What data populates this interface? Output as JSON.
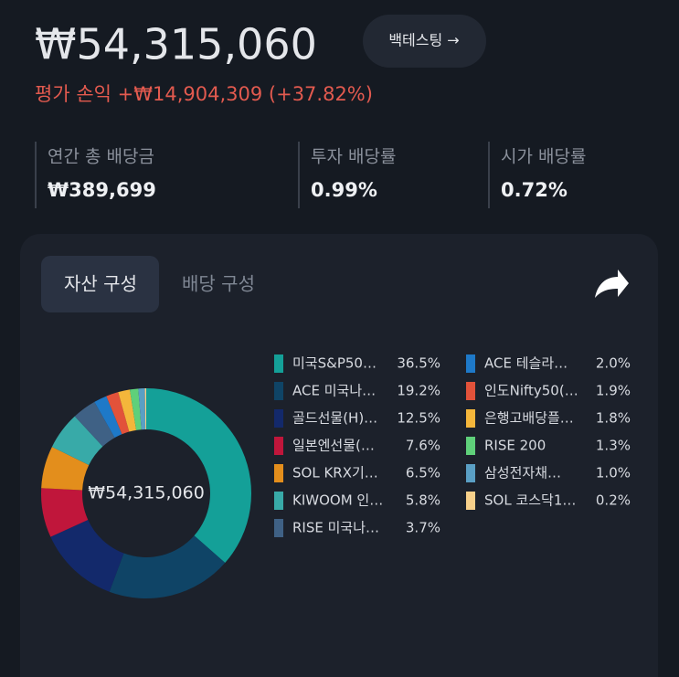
{
  "header": {
    "total": "₩54,315,060",
    "profit": "평가 손익 +₩14,904,309 (+37.82%)",
    "button": "백테스팅 →"
  },
  "stats": [
    {
      "label": "연간 총 배당금",
      "value": "₩389,699"
    },
    {
      "label": "투자 배당률",
      "value": "0.99%"
    },
    {
      "label": "시가 배당률",
      "value": "0.72%"
    }
  ],
  "tabs": [
    "자산 구성",
    "배당 구성"
  ],
  "chart_data": {
    "type": "donut",
    "center_label": "₩54,315,060",
    "categories": [
      "미국S&P50…",
      "ACE 미국나…",
      "골드선물(H)…",
      "일본엔선물(…",
      "SOL KRX기…",
      "KIWOOM 인…",
      "RISE 미국나…",
      "ACE 테슬라…",
      "인도Nifty50(…",
      "은행고배당플…",
      "RISE 200",
      "삼성전자채…",
      "SOL 코스닥1…"
    ],
    "values": [
      36.5,
      19.2,
      12.5,
      7.6,
      6.5,
      5.8,
      3.7,
      2.0,
      1.9,
      1.8,
      1.3,
      1.0,
      0.2
    ],
    "value_labels": [
      "36.5%",
      "19.2%",
      "12.5%",
      "7.6%",
      "6.5%",
      "5.8%",
      "3.7%",
      "2.0%",
      "1.9%",
      "1.8%",
      "1.3%",
      "1.0%",
      "0.2%"
    ],
    "colors": [
      "#14a098",
      "#0f4466",
      "#13296b",
      "#c0163b",
      "#e38e1c",
      "#38aaa8",
      "#3f6185",
      "#1e79c8",
      "#e2523a",
      "#f4b63b",
      "#5fd07a",
      "#5a9fc4",
      "#f7d08a"
    ]
  }
}
